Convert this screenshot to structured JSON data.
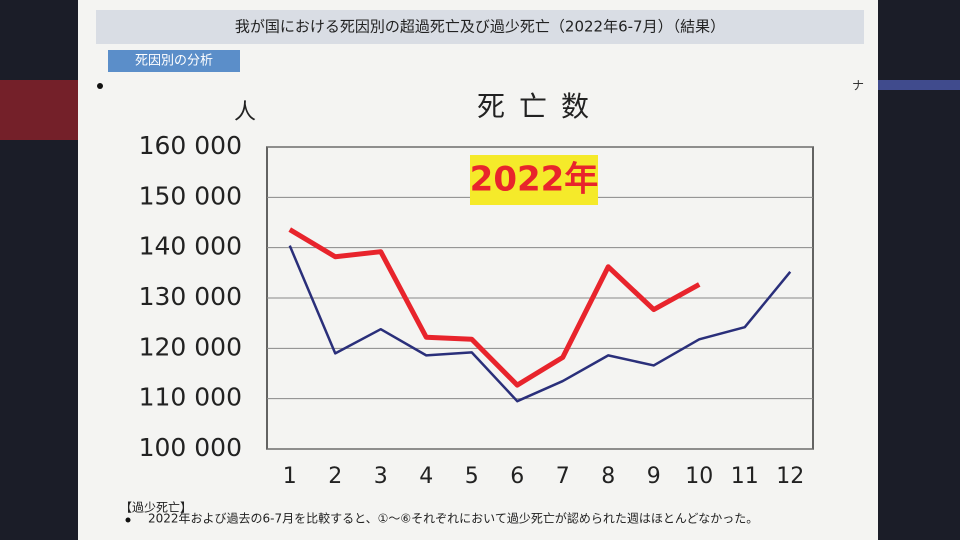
{
  "header": {
    "title": "我が国における死因別の超過死亡及び過少死亡（2022年6-7月）（結果）",
    "tag": "死因別の分析",
    "side_mark": "ナ"
  },
  "chart_data": {
    "type": "line",
    "title": "死亡数",
    "y_label": "人",
    "categories": [
      "1",
      "2",
      "3",
      "4",
      "5",
      "6",
      "7",
      "8",
      "9",
      "10",
      "11",
      "12"
    ],
    "series": [
      {
        "color": "#2a2f7a",
        "values": [
          140400,
          119000,
          123800,
          118600,
          119200,
          109500,
          113500,
          118600,
          116600,
          121800,
          124200,
          135200
        ]
      },
      {
        "name": "2022年",
        "color": "#e8242c",
        "values": [
          143600,
          138200,
          139200,
          122200,
          121800,
          112700,
          118200,
          136200,
          127700,
          132700,
          null,
          null
        ]
      }
    ],
    "ylim": [
      100000,
      160000
    ],
    "yticks": [
      {
        "value": 100000,
        "label": "100 000"
      },
      {
        "value": 110000,
        "label": "110 000"
      },
      {
        "value": 120000,
        "label": "120 000"
      },
      {
        "value": 130000,
        "label": "130 000"
      },
      {
        "value": 140000,
        "label": "140 000"
      },
      {
        "value": 150000,
        "label": "150 000"
      },
      {
        "value": 160000,
        "label": "160 000"
      }
    ],
    "grid": true
  },
  "footer": {
    "heading": "【過少死亡】",
    "bullet": "2022年および過去の6-7月を比較すると、①～⑥それぞれにおいて過少死亡が認められた週はほとんどなかった。"
  }
}
